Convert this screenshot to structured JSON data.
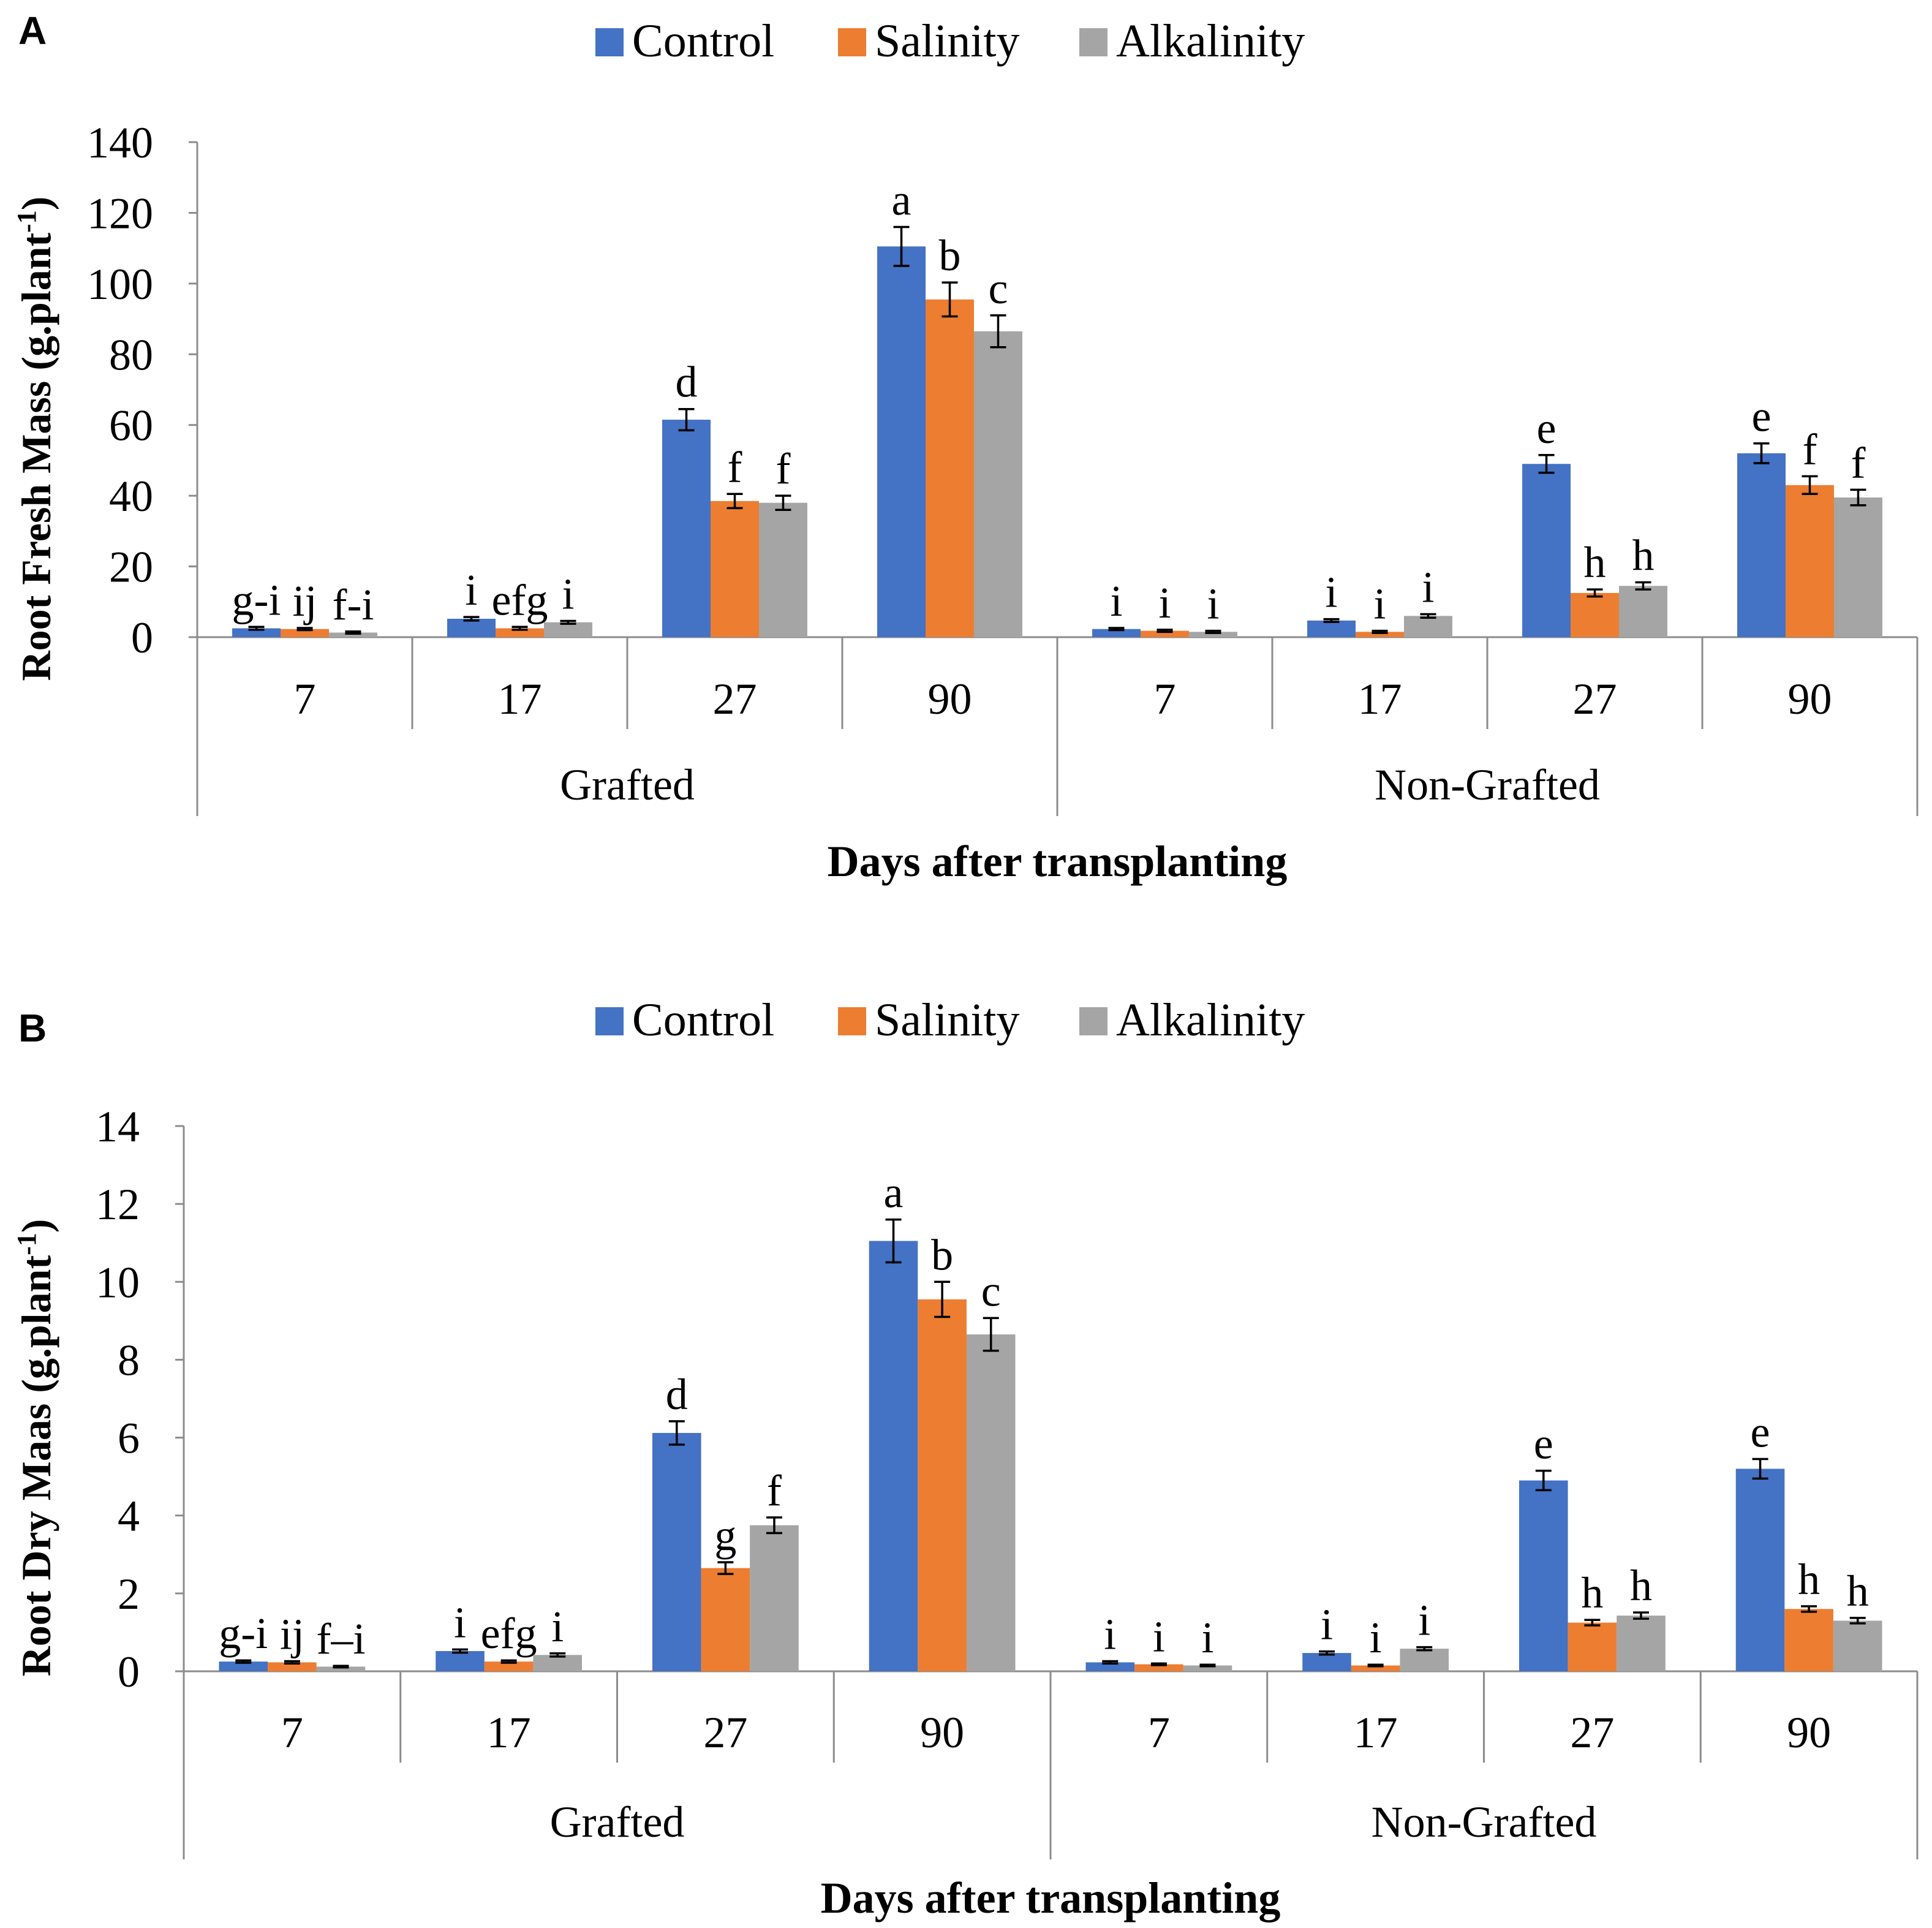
{
  "chart_data": [
    {
      "panel": "A",
      "type": "bar",
      "legend": [
        "Control",
        "Salinity",
        "Alkalinity"
      ],
      "colors": {
        "Control": "#4472C4",
        "Salinity": "#ED7D31",
        "Alkalinity": "#A5A5A5"
      },
      "ylabel_main": "Root Fresh Mass (g.plant",
      "ylabel_sup": "-1",
      "ylabel_close": ")",
      "xlabel": "Days after transplanting",
      "ylim": [
        0,
        140
      ],
      "yticks": [
        0,
        20,
        40,
        60,
        80,
        100,
        120,
        140
      ],
      "groups": [
        {
          "label": "Grafted",
          "categories": [
            "7",
            "17",
            "27",
            "90"
          ]
        },
        {
          "label": "Non-Grafted",
          "categories": [
            "7",
            "17",
            "27",
            "90"
          ]
        }
      ],
      "series": [
        {
          "name": "Control",
          "values": [
            2.5,
            5.2,
            61.5,
            110.5,
            2.3,
            4.7,
            49.0,
            52.0
          ],
          "errors": [
            0.4,
            0.5,
            3.0,
            5.5,
            0.3,
            0.4,
            2.5,
            2.8
          ],
          "letters": [
            "g-i",
            "i",
            "d",
            "a",
            "i",
            "i",
            "e",
            "e"
          ]
        },
        {
          "name": "Salinity",
          "values": [
            2.3,
            2.5,
            38.5,
            95.5,
            1.8,
            1.5,
            12.5,
            43.0
          ],
          "errors": [
            0.3,
            0.4,
            2.0,
            4.8,
            0.3,
            0.3,
            1.0,
            2.5
          ],
          "letters": [
            "ij",
            "efg",
            "f",
            "b",
            "i",
            "i",
            "h",
            "f"
          ]
        },
        {
          "name": "Alkalinity",
          "values": [
            1.3,
            4.2,
            38.0,
            86.5,
            1.5,
            6.0,
            14.5,
            39.5
          ],
          "errors": [
            0.3,
            0.4,
            2.0,
            4.5,
            0.3,
            0.5,
            1.0,
            2.2
          ],
          "letters": [
            "f-i",
            "i",
            "f",
            "c",
            "i",
            "i",
            "h",
            "f"
          ]
        }
      ]
    },
    {
      "panel": "B",
      "type": "bar",
      "legend": [
        "Control",
        "Salinity",
        "Alkalinity"
      ],
      "colors": {
        "Control": "#4472C4",
        "Salinity": "#ED7D31",
        "Alkalinity": "#A5A5A5"
      },
      "ylabel_main": "Root Dry Maas (g.plant",
      "ylabel_sup": "-1",
      "ylabel_close": ")",
      "xlabel": "Days after transplanting",
      "ylim": [
        0,
        14
      ],
      "yticks": [
        0,
        2,
        4,
        6,
        8,
        10,
        12,
        14
      ],
      "groups": [
        {
          "label": "Grafted",
          "categories": [
            "7",
            "17",
            "27",
            "90"
          ]
        },
        {
          "label": "Non-Grafted",
          "categories": [
            "7",
            "17",
            "27",
            "90"
          ]
        }
      ],
      "series": [
        {
          "name": "Control",
          "values": [
            0.25,
            0.52,
            6.12,
            11.05,
            0.23,
            0.47,
            4.9,
            5.2
          ],
          "errors": [
            0.03,
            0.04,
            0.3,
            0.55,
            0.03,
            0.04,
            0.25,
            0.25
          ],
          "letters": [
            "g-i",
            "i",
            "d",
            "a",
            "i",
            "i",
            "e",
            "e"
          ]
        },
        {
          "name": "Salinity",
          "values": [
            0.23,
            0.25,
            2.65,
            9.55,
            0.18,
            0.15,
            1.25,
            1.6
          ],
          "errors": [
            0.03,
            0.03,
            0.15,
            0.45,
            0.02,
            0.02,
            0.07,
            0.07
          ],
          "letters": [
            "ij",
            "efg",
            "g",
            "b",
            "i",
            "i",
            "h",
            "h"
          ]
        },
        {
          "name": "Alkalinity",
          "values": [
            0.12,
            0.42,
            3.75,
            8.65,
            0.15,
            0.58,
            1.43,
            1.3
          ],
          "errors": [
            0.02,
            0.04,
            0.2,
            0.42,
            0.02,
            0.04,
            0.08,
            0.07
          ],
          "letters": [
            "f–i",
            "i",
            "f",
            "c",
            "i",
            "i",
            "h",
            "h"
          ]
        }
      ]
    }
  ]
}
